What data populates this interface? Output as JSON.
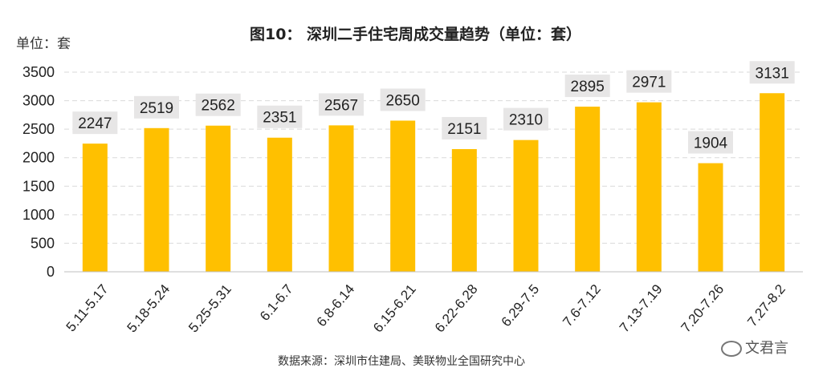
{
  "title": "图10：  深圳二手住宅周成交量趋势（单位：套）",
  "unit_label": "单位：套",
  "source": "数据来源：深圳市住建局、美联物业全国研究中心",
  "watermark_text": "文君言",
  "colors": {
    "bar": "#FFC000",
    "label_bg": "#E7E6E6",
    "grid": "#D9D9D9",
    "axis_text": "#222222"
  },
  "chart_data": {
    "type": "bar",
    "categories": [
      "5.11-5.17",
      "5.18-5.24",
      "5.25-5.31",
      "6.1-6.7",
      "6.8-6.14",
      "6.15-6.21",
      "6.22-6.28",
      "6.29-7.5",
      "7.6-7.12",
      "7.13-7.19",
      "7.20-7.26",
      "7.27-8.2"
    ],
    "values": [
      2247,
      2519,
      2562,
      2351,
      2567,
      2650,
      2151,
      2310,
      2895,
      2971,
      1904,
      3131
    ],
    "ylim": [
      0,
      3500
    ],
    "yticks": [
      0,
      500,
      1000,
      1500,
      2000,
      2500,
      3000,
      3500
    ],
    "grid": true
  }
}
